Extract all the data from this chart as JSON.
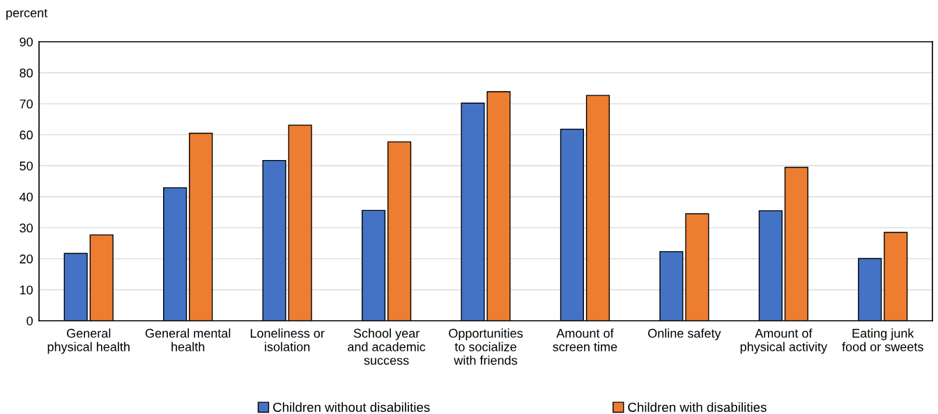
{
  "chart_data": {
    "type": "bar",
    "ylabel": "percent",
    "categories": [
      "General\nphysical health",
      "General mental\nhealth",
      "Loneliness or\nisolation",
      "School year\nand academic\nsuccess",
      "Opportunities\nto socialize\nwith friends",
      "Amount of\nscreen time",
      "Online safety",
      "Amount of\nphysical activity",
      "Eating junk\nfood or sweets"
    ],
    "series": [
      {
        "name": "Children without disabilities",
        "color": "#4472c4",
        "values": [
          21.7,
          42.9,
          51.7,
          35.6,
          70.2,
          61.8,
          22.3,
          35.5,
          20.1
        ]
      },
      {
        "name": "Children with disabilities",
        "color": "#ed7d31",
        "values": [
          27.7,
          60.5,
          63.1,
          57.7,
          73.9,
          72.7,
          34.5,
          49.5,
          28.5
        ]
      }
    ],
    "ylim": [
      0,
      90
    ],
    "yticks": [
      0,
      10,
      20,
      30,
      40,
      50,
      60,
      70,
      80,
      90
    ],
    "grid": "y",
    "legend": "bottom"
  }
}
